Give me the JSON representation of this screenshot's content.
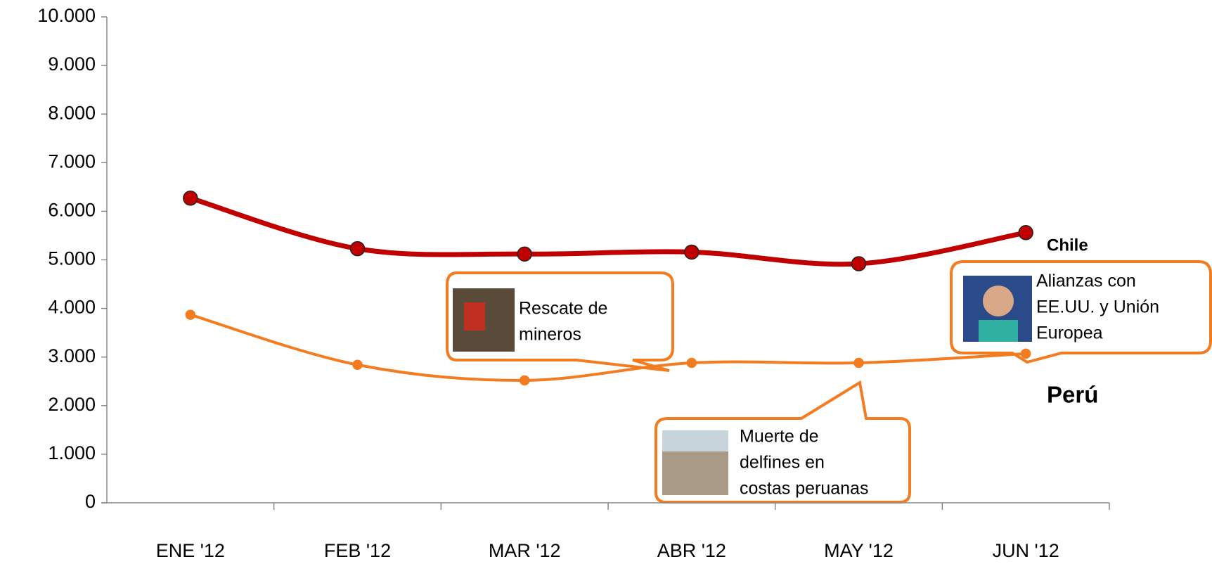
{
  "chart_data": {
    "type": "line",
    "categories": [
      "ENE '12",
      "FEB '12",
      "MAR '12",
      "ABR '12",
      "MAY '12",
      "JUN '12"
    ],
    "series": [
      {
        "name": "Chile",
        "color": "#c00000",
        "values": [
          6270,
          5230,
          5120,
          5160,
          4920,
          5560
        ]
      },
      {
        "name": "Perú",
        "color": "#f47c20",
        "values": [
          3870,
          2840,
          2520,
          2880,
          2880,
          3070
        ]
      }
    ],
    "ylim": [
      0,
      10000
    ],
    "yticks": [
      0,
      {
        "value": 1000,
        "label": "1.000"
      },
      {
        "value": 2000,
        "label": "2.000"
      },
      {
        "value": 3000,
        "label": "3.000"
      },
      {
        "value": 4000,
        "label": "4.000"
      },
      {
        "value": 5000,
        "label": "5.000"
      },
      {
        "value": 6000,
        "label": "6.000"
      },
      {
        "value": 7000,
        "label": "7.000"
      },
      {
        "value": 8000,
        "label": "8.000"
      },
      {
        "value": 9000,
        "label": "9.000"
      },
      {
        "value": 10000,
        "label": "10.000"
      }
    ],
    "annotations": [
      {
        "lines": [
          "Rescate de",
          "mineros"
        ]
      },
      {
        "lines": [
          "Muerte de",
          "delfines en",
          "costas peruanas"
        ]
      },
      {
        "lines": [
          "Alianzas  con",
          "EE.UU. y Unión",
          "Europea"
        ]
      }
    ]
  }
}
